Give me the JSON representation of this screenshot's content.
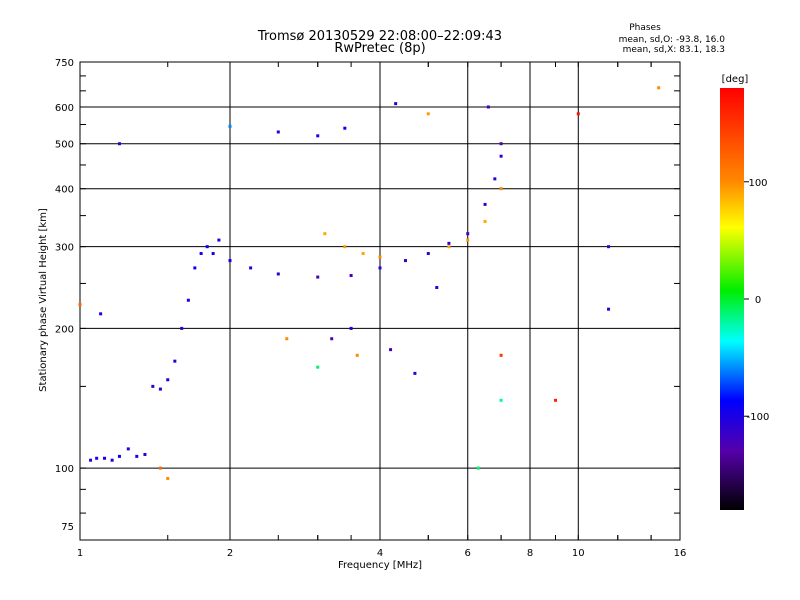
{
  "chart_data": {
    "type": "scatter",
    "title": "Tromsø 20130529 22:08:00–22:09:43",
    "subtitle": "RwPretec (8p)",
    "xlabel": "Frequency [MHz]",
    "ylabel": "Stationary phase Virtual Height [km]",
    "xscale": "log",
    "yscale": "log",
    "xlim": [
      1,
      16
    ],
    "ylim": [
      70,
      750
    ],
    "xticks": [
      1,
      2,
      4,
      6,
      8,
      10,
      16
    ],
    "xtick_labels": [
      "1",
      "2",
      "4",
      "6",
      "8",
      "10",
      "16"
    ],
    "xgrid": [
      2,
      4,
      6,
      8,
      10
    ],
    "yticks": [
      75,
      100,
      200,
      300,
      400,
      500,
      600,
      750
    ],
    "ytick_labels": [
      "75",
      "100",
      "200",
      "300",
      "400",
      "500",
      "600",
      "750"
    ],
    "ygrid": [
      100,
      200,
      300,
      400,
      500,
      600
    ],
    "phases_box": {
      "heading": "Phases",
      "line_o": "mean, sd,O: -93.8, 16.0",
      "line_x": "mean, sd,X: 83.1, 18.3"
    },
    "colorbar": {
      "label": "[deg]",
      "range": [
        -180,
        180
      ],
      "ticks": [
        100,
        0,
        -100
      ],
      "tick_labels": [
        "100",
        "0",
        "-100"
      ]
    },
    "series": [
      {
        "name": "traces",
        "points": [
          {
            "x": 1.05,
            "y": 104,
            "p": -110
          },
          {
            "x": 1.08,
            "y": 105,
            "p": -105
          },
          {
            "x": 1.12,
            "y": 105,
            "p": -100
          },
          {
            "x": 1.16,
            "y": 104,
            "p": -100
          },
          {
            "x": 1.2,
            "y": 106,
            "p": -95
          },
          {
            "x": 1.25,
            "y": 110,
            "p": -110
          },
          {
            "x": 1.3,
            "y": 106,
            "p": -100
          },
          {
            "x": 1.35,
            "y": 107,
            "p": -105
          },
          {
            "x": 1.4,
            "y": 150,
            "p": -110
          },
          {
            "x": 1.45,
            "y": 148,
            "p": -105
          },
          {
            "x": 1.5,
            "y": 155,
            "p": -100
          },
          {
            "x": 1.55,
            "y": 170,
            "p": -110
          },
          {
            "x": 1.6,
            "y": 200,
            "p": -105
          },
          {
            "x": 1.65,
            "y": 230,
            "p": -100
          },
          {
            "x": 1.7,
            "y": 270,
            "p": -95
          },
          {
            "x": 1.75,
            "y": 290,
            "p": -100
          },
          {
            "x": 1.8,
            "y": 300,
            "p": -90
          },
          {
            "x": 1.85,
            "y": 290,
            "p": -95
          },
          {
            "x": 1.9,
            "y": 310,
            "p": -100
          },
          {
            "x": 2.0,
            "y": 280,
            "p": -100
          },
          {
            "x": 2.2,
            "y": 270,
            "p": -105
          },
          {
            "x": 2.5,
            "y": 262,
            "p": -110
          },
          {
            "x": 3.0,
            "y": 258,
            "p": -120
          },
          {
            "x": 3.5,
            "y": 260,
            "p": -120
          },
          {
            "x": 4.0,
            "y": 270,
            "p": -110
          },
          {
            "x": 4.5,
            "y": 280,
            "p": -115
          },
          {
            "x": 5.0,
            "y": 290,
            "p": -110
          },
          {
            "x": 5.5,
            "y": 305,
            "p": -110
          },
          {
            "x": 6.0,
            "y": 320,
            "p": -120
          },
          {
            "x": 6.5,
            "y": 370,
            "p": -115
          },
          {
            "x": 6.8,
            "y": 420,
            "p": -110
          },
          {
            "x": 7.0,
            "y": 470,
            "p": -110
          },
          {
            "x": 3.1,
            "y": 320,
            "p": 90
          },
          {
            "x": 3.4,
            "y": 300,
            "p": 95
          },
          {
            "x": 3.7,
            "y": 290,
            "p": 90
          },
          {
            "x": 4.0,
            "y": 285,
            "p": 100
          },
          {
            "x": 5.5,
            "y": 300,
            "p": 90
          },
          {
            "x": 6.0,
            "y": 310,
            "p": 95
          },
          {
            "x": 6.5,
            "y": 340,
            "p": 90
          },
          {
            "x": 7.0,
            "y": 400,
            "p": 100
          },
          {
            "x": 2.0,
            "y": 545,
            "p": -60
          },
          {
            "x": 2.5,
            "y": 530,
            "p": -110
          },
          {
            "x": 3.0,
            "y": 520,
            "p": -100
          },
          {
            "x": 3.4,
            "y": 540,
            "p": -90
          },
          {
            "x": 5.0,
            "y": 580,
            "p": 95
          },
          {
            "x": 1.2,
            "y": 500,
            "p": -110
          },
          {
            "x": 4.3,
            "y": 610,
            "p": -100
          },
          {
            "x": 6.6,
            "y": 600,
            "p": -120
          },
          {
            "x": 7.0,
            "y": 500,
            "p": -130
          },
          {
            "x": 10.0,
            "y": 580,
            "p": 170
          },
          {
            "x": 11.5,
            "y": 300,
            "p": -110
          },
          {
            "x": 11.5,
            "y": 220,
            "p": -110
          },
          {
            "x": 14.5,
            "y": 660,
            "p": 100
          },
          {
            "x": 9.0,
            "y": 140,
            "p": 160
          },
          {
            "x": 7.0,
            "y": 175,
            "p": 150
          },
          {
            "x": 7.0,
            "y": 140,
            "p": -20
          },
          {
            "x": 6.3,
            "y": 100,
            "p": -10
          },
          {
            "x": 1.5,
            "y": 95,
            "p": 100
          },
          {
            "x": 1.45,
            "y": 100,
            "p": 120
          },
          {
            "x": 2.6,
            "y": 190,
            "p": 100
          },
          {
            "x": 3.2,
            "y": 190,
            "p": -130
          },
          {
            "x": 3.5,
            "y": 200,
            "p": -100
          },
          {
            "x": 3.6,
            "y": 175,
            "p": 100
          },
          {
            "x": 4.2,
            "y": 180,
            "p": -120
          },
          {
            "x": 4.7,
            "y": 160,
            "p": -110
          },
          {
            "x": 1.1,
            "y": 215,
            "p": -100
          },
          {
            "x": 1.0,
            "y": 225,
            "p": 120
          },
          {
            "x": 5.2,
            "y": 245,
            "p": -110
          },
          {
            "x": 3.0,
            "y": 165,
            "p": -10
          }
        ]
      }
    ]
  }
}
